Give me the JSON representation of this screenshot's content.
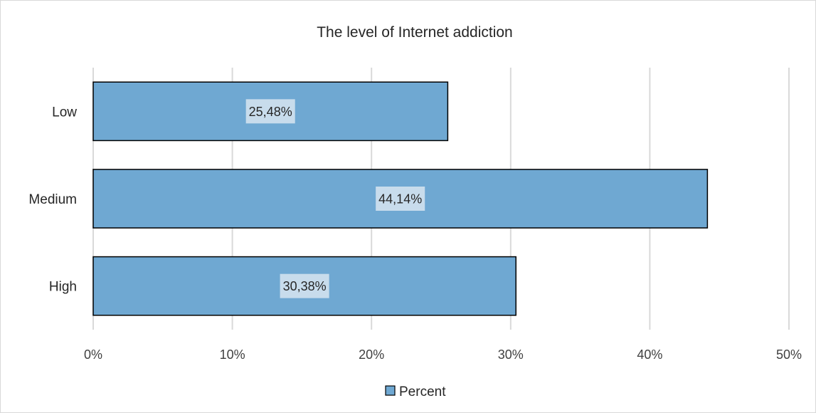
{
  "chart_data": {
    "type": "bar",
    "orientation": "horizontal",
    "title": "The level of Internet addiction",
    "categories": [
      "Low",
      "Medium",
      "High"
    ],
    "series": [
      {
        "name": "Percent",
        "values": [
          25.48,
          44.14,
          30.38
        ],
        "data_labels": [
          "25,48%",
          "44,14%",
          "30,38%"
        ],
        "color": "#6fa8d2"
      }
    ],
    "xlim": [
      0,
      50
    ],
    "x_ticks": [
      0,
      10,
      20,
      30,
      40,
      50
    ],
    "x_tick_labels": [
      "0%",
      "10%",
      "20%",
      "30%",
      "40%",
      "50%"
    ],
    "grid": true,
    "legend": "bottom"
  }
}
